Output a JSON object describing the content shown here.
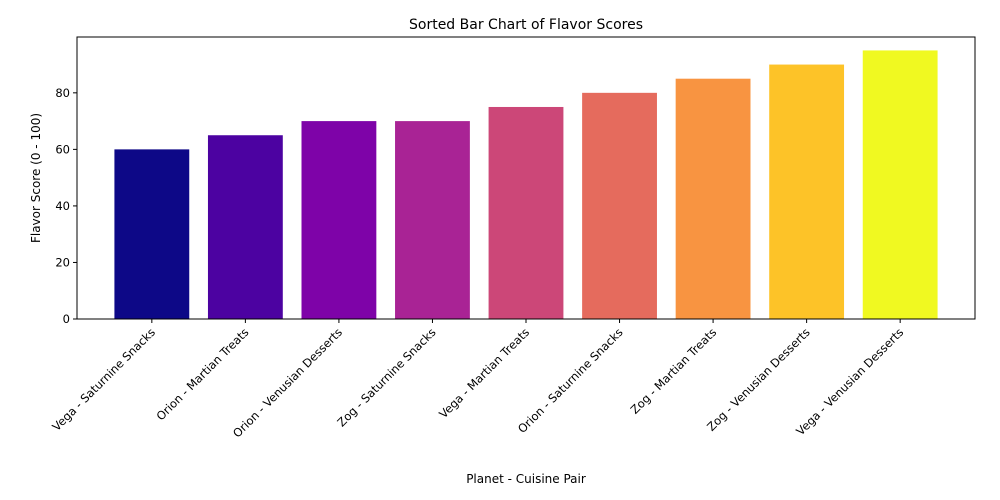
{
  "chart_data": {
    "type": "bar",
    "title": "Sorted Bar Chart of Flavor Scores",
    "xlabel": "Planet - Cuisine Pair",
    "ylabel": "Flavor Score (0 - 100)",
    "categories": [
      "Vega - Saturnine Snacks",
      "Orion - Martian Treats",
      "Orion - Venusian Desserts",
      "Zog - Saturnine Snacks",
      "Vega - Martian Treats",
      "Orion - Saturnine Snacks",
      "Zog - Martian Treats",
      "Zog - Venusian Desserts",
      "Vega - Venusian Desserts"
    ],
    "values": [
      60,
      65,
      70,
      70,
      75,
      80,
      85,
      90,
      95
    ],
    "colors": [
      "#0d0887",
      "#4c02a1",
      "#7e03a8",
      "#a92395",
      "#cc4778",
      "#e56b5d",
      "#f89441",
      "#fdc328",
      "#f0f921"
    ],
    "ylim": [
      0,
      99.75
    ],
    "yticks": [
      0,
      20,
      40,
      60,
      80
    ],
    "grid": false,
    "legend": "none"
  }
}
